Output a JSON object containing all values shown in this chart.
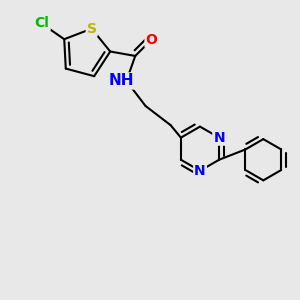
{
  "background_color": "#e8e8e8",
  "atom_colors": {
    "C": "#000000",
    "N": "#0000ff",
    "O": "#ff0000",
    "S": "#b8b800",
    "Cl": "#00bb00",
    "H": "#444444"
  },
  "bond_color": "#000000",
  "bond_width": 1.5,
  "font_size": 10,
  "figsize": [
    3.0,
    3.0
  ],
  "dpi": 100,
  "xlim": [
    0,
    10
  ],
  "ylim": [
    0,
    10
  ]
}
